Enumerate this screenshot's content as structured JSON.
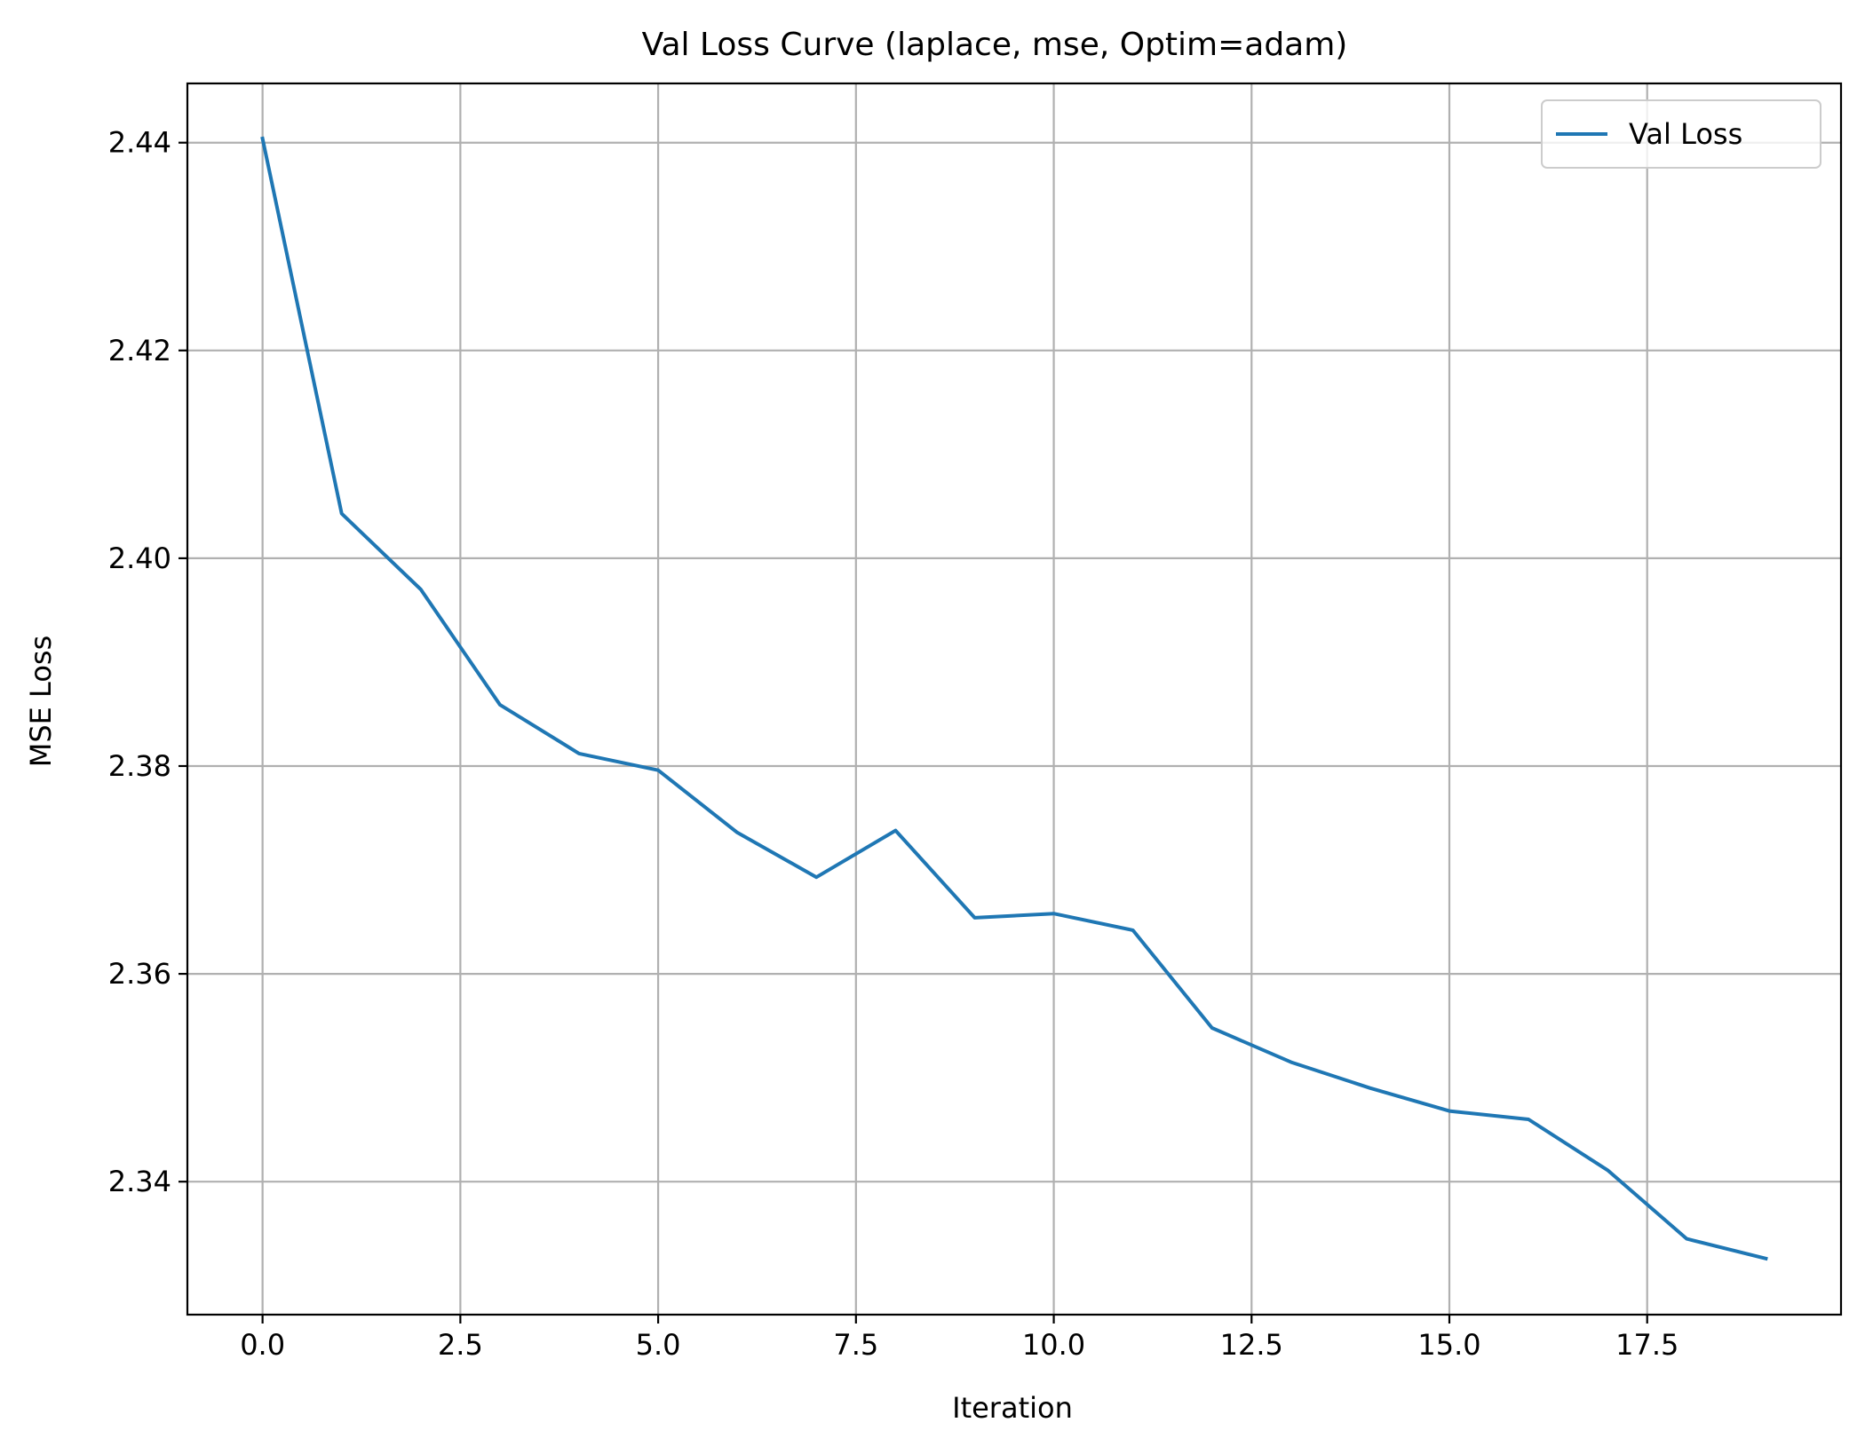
{
  "chart_data": {
    "type": "line",
    "title": "Val Loss Curve (laplace, mse, Optim=adam)",
    "xlabel": "Iteration",
    "ylabel": "MSE Loss",
    "xlim": [
      -0.95,
      19.95
    ],
    "ylim": [
      2.3272,
      2.4457
    ],
    "xticks": [
      0,
      2.5,
      5,
      7.5,
      10,
      12.5,
      15,
      17.5
    ],
    "xtick_labels": [
      "0.0",
      "2.5",
      "5.0",
      "7.5",
      "10.0",
      "12.5",
      "15.0",
      "17.5"
    ],
    "yticks": [
      2.34,
      2.36,
      2.38,
      2.4,
      2.42,
      2.44
    ],
    "ytick_labels": [
      "2.34",
      "2.36",
      "2.38",
      "2.40",
      "2.42",
      "2.44"
    ],
    "grid": true,
    "legend_position": "upper right",
    "series": [
      {
        "name": "Val Loss",
        "color": "#1f77b4",
        "x": [
          0,
          1,
          2,
          3,
          4,
          5,
          6,
          7,
          8,
          9,
          10,
          11,
          12,
          13,
          14,
          15,
          16,
          17,
          18,
          19
        ],
        "values": [
          2.4404,
          2.4043,
          2.397,
          2.3859,
          2.3812,
          2.3796,
          2.3736,
          2.3693,
          2.3738,
          2.3654,
          2.3658,
          2.3642,
          2.3548,
          2.3515,
          2.349,
          2.3468,
          2.346,
          2.3411,
          2.3345,
          2.3326
        ]
      }
    ]
  }
}
